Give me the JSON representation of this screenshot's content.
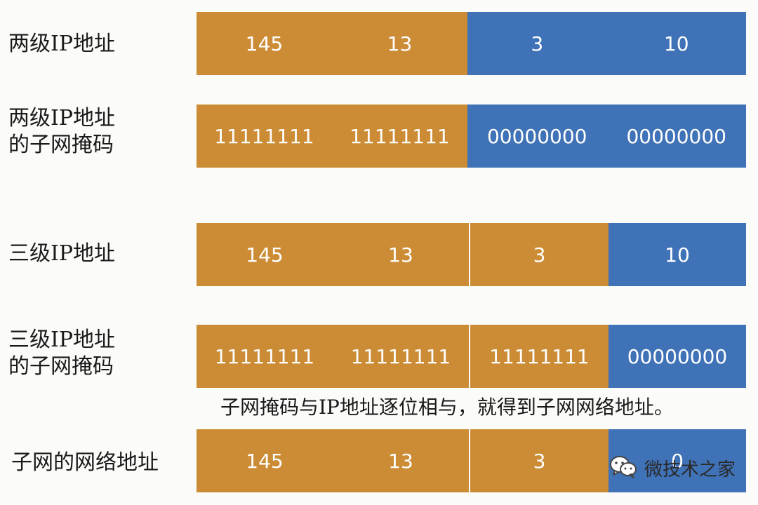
{
  "rows": [
    {
      "label": "两级IP地址",
      "segments": [
        {
          "color": "#cc8c35",
          "values": [
            "145",
            "13"
          ]
        },
        {
          "color": "#3f72b6",
          "values": [
            "3",
            "10"
          ]
        }
      ]
    },
    {
      "label": "两级IP地址\n的子网掩码",
      "segments": [
        {
          "color": "#cc8c35",
          "values": [
            "11111111",
            "11111111"
          ]
        },
        {
          "color": "#3f72b6",
          "values": [
            "00000000",
            "00000000"
          ]
        }
      ]
    },
    {
      "label": "三级IP地址",
      "segments": [
        {
          "color": "#cc8c35",
          "values": [
            "145",
            "13"
          ]
        },
        {
          "color": "#cc8c35",
          "values": [
            "3"
          ]
        },
        {
          "color": "#3f72b6",
          "values": [
            "10"
          ]
        }
      ]
    },
    {
      "label": "三级IP地址\n的子网掩码",
      "segments": [
        {
          "color": "#cc8c35",
          "values": [
            "11111111",
            "11111111"
          ]
        },
        {
          "color": "#cc8c35",
          "values": [
            "11111111"
          ]
        },
        {
          "color": "#3f72b6",
          "values": [
            "00000000"
          ]
        }
      ]
    },
    {
      "label": "子网的网络地址",
      "segments": [
        {
          "color": "#cc8c35",
          "values": [
            "145",
            "13"
          ]
        },
        {
          "color": "#cc8c35",
          "values": [
            "3"
          ]
        },
        {
          "color": "#3f72b6",
          "values": [
            "0"
          ]
        }
      ]
    }
  ],
  "note": "子网掩码与IP地址逐位相与，就得到子网网络地址。",
  "watermark": {
    "icon": "wechat-icon",
    "text": "微技术之家"
  },
  "colors": {
    "network": "#cc8c35",
    "host": "#3f72b6",
    "background": "#fbfbf9"
  }
}
